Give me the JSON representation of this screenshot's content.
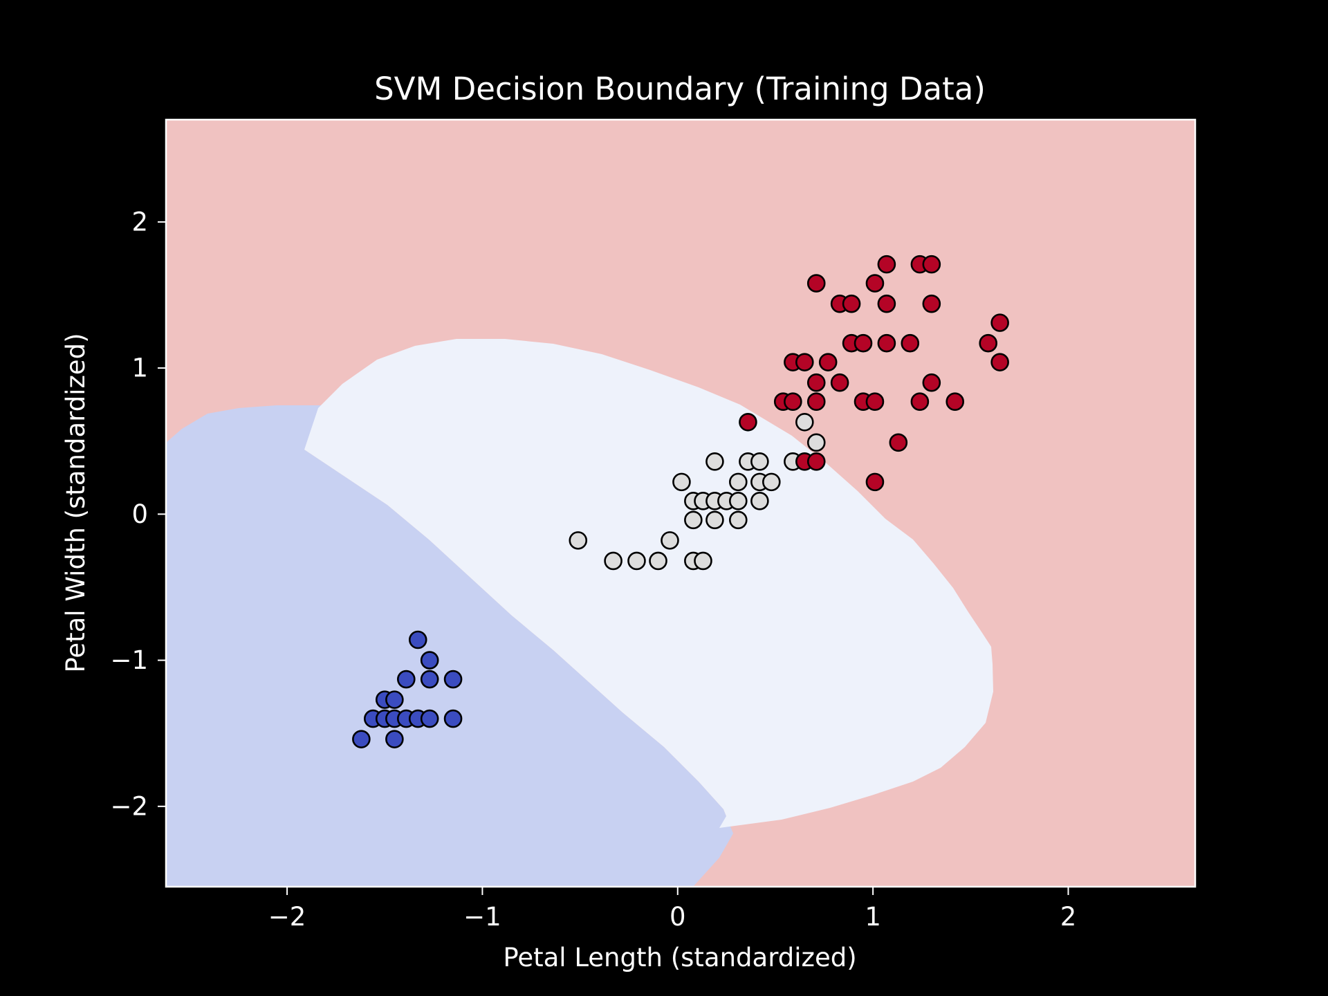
{
  "chart_data": {
    "type": "scatter",
    "title": "SVM Decision Boundary (Training Data)",
    "xlabel": "Petal Length (standardized)",
    "ylabel": "Petal Width (standardized)",
    "xlim": [
      -2.62,
      2.65
    ],
    "ylim": [
      -2.55,
      2.7
    ],
    "xticks": [
      -2,
      -1,
      0,
      1,
      2
    ],
    "yticks": [
      -2,
      -1,
      0,
      1,
      2
    ],
    "xtick_labels": [
      "−2",
      "−1",
      "0",
      "1",
      "2"
    ],
    "ytick_labels": [
      "−2",
      "−1",
      "0",
      "1",
      "2"
    ],
    "grid": false,
    "regions": [
      {
        "class": "class-0",
        "color": "#c8d1f2"
      },
      {
        "class": "class-1",
        "color": "#eef2fb"
      },
      {
        "class": "class-2",
        "color": "#f0c2c1"
      }
    ],
    "series": [
      {
        "class": "class-0",
        "color": "#3b4cc0",
        "points": [
          [
            -1.33,
            -0.86
          ],
          [
            -1.27,
            -1.0
          ],
          [
            -1.39,
            -1.13
          ],
          [
            -1.27,
            -1.13
          ],
          [
            -1.15,
            -1.13
          ],
          [
            -1.5,
            -1.27
          ],
          [
            -1.45,
            -1.27
          ],
          [
            -1.56,
            -1.4
          ],
          [
            -1.5,
            -1.4
          ],
          [
            -1.45,
            -1.4
          ],
          [
            -1.39,
            -1.4
          ],
          [
            -1.33,
            -1.4
          ],
          [
            -1.27,
            -1.4
          ],
          [
            -1.15,
            -1.4
          ],
          [
            -1.62,
            -1.54
          ],
          [
            -1.45,
            -1.54
          ]
        ]
      },
      {
        "class": "class-1",
        "color": "#dddddd",
        "points": [
          [
            0.65,
            0.63
          ],
          [
            0.71,
            0.49
          ],
          [
            0.19,
            0.36
          ],
          [
            0.36,
            0.36
          ],
          [
            0.42,
            0.36
          ],
          [
            0.59,
            0.36
          ],
          [
            0.02,
            0.22
          ],
          [
            0.31,
            0.22
          ],
          [
            0.42,
            0.22
          ],
          [
            0.48,
            0.22
          ],
          [
            0.08,
            0.09
          ],
          [
            0.13,
            0.09
          ],
          [
            0.19,
            0.09
          ],
          [
            0.25,
            0.09
          ],
          [
            0.31,
            0.09
          ],
          [
            0.42,
            0.09
          ],
          [
            0.08,
            -0.04
          ],
          [
            0.19,
            -0.04
          ],
          [
            0.31,
            -0.04
          ],
          [
            -0.51,
            -0.18
          ],
          [
            -0.04,
            -0.18
          ],
          [
            -0.33,
            -0.32
          ],
          [
            -0.21,
            -0.32
          ],
          [
            -0.1,
            -0.32
          ],
          [
            0.08,
            -0.32
          ],
          [
            0.13,
            -0.32
          ]
        ]
      },
      {
        "class": "class-2",
        "color": "#b40426",
        "points": [
          [
            1.07,
            1.71
          ],
          [
            1.24,
            1.71
          ],
          [
            1.3,
            1.71
          ],
          [
            0.71,
            1.58
          ],
          [
            1.01,
            1.58
          ],
          [
            0.83,
            1.44
          ],
          [
            0.89,
            1.44
          ],
          [
            1.07,
            1.44
          ],
          [
            1.3,
            1.44
          ],
          [
            1.65,
            1.31
          ],
          [
            0.89,
            1.17
          ],
          [
            0.95,
            1.17
          ],
          [
            1.07,
            1.17
          ],
          [
            1.19,
            1.17
          ],
          [
            1.59,
            1.17
          ],
          [
            0.59,
            1.04
          ],
          [
            0.65,
            1.04
          ],
          [
            0.77,
            1.04
          ],
          [
            1.65,
            1.04
          ],
          [
            0.71,
            0.9
          ],
          [
            0.83,
            0.9
          ],
          [
            1.3,
            0.9
          ],
          [
            0.54,
            0.77
          ],
          [
            0.59,
            0.77
          ],
          [
            0.71,
            0.77
          ],
          [
            0.95,
            0.77
          ],
          [
            1.01,
            0.77
          ],
          [
            1.24,
            0.77
          ],
          [
            1.42,
            0.77
          ],
          [
            0.36,
            0.63
          ],
          [
            1.13,
            0.49
          ],
          [
            0.65,
            0.36
          ],
          [
            0.71,
            0.36
          ],
          [
            1.01,
            0.22
          ]
        ]
      }
    ]
  }
}
